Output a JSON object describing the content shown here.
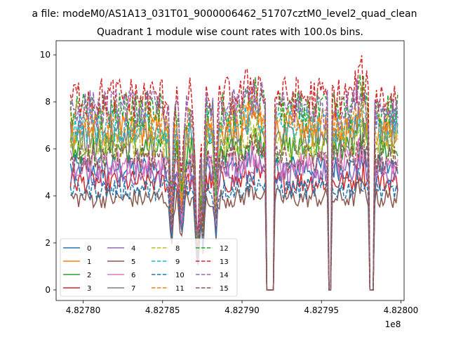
{
  "figure": {
    "suptitle": "a file: modeM0/AS1A13_031T01_9000006462_51707cztM0_level2_quad_clean",
    "title": "Quadrant 1 module wise count rates with 100.0s bins."
  },
  "chart_data": {
    "type": "line",
    "title": "Quadrant 1 module wise count rates with 100.0s bins.",
    "xlabel": "",
    "ylabel": "",
    "x_offset_label": "1e8",
    "xlim": [
      4.827783,
      4.828002
    ],
    "ylim": [
      -0.45,
      10.6
    ],
    "x_ticks": [
      4.8278,
      4.82785,
      4.8279,
      4.82795,
      4.828
    ],
    "x_tick_labels": [
      "4.82780",
      "4.82785",
      "4.82790",
      "4.82795",
      "4.82800"
    ],
    "y_ticks": [
      0,
      2,
      4,
      6,
      8,
      10
    ],
    "y_tick_labels": [
      "0",
      "2",
      "4",
      "6",
      "8",
      "10"
    ],
    "grid": false,
    "legend_location": "lower-left",
    "legend_columns": 4,
    "x_range": [
      4.827792,
      4.827998
    ],
    "gaps": [
      {
        "start": 4.8279155,
        "end": 4.8279205,
        "level": 0
      },
      {
        "start": 4.8279545,
        "end": 4.8279565,
        "level": 0
      },
      {
        "start": 4.8279795,
        "end": 4.8279835,
        "level": 0
      }
    ],
    "series": [
      {
        "name": "0",
        "color": "#1f77b4",
        "dash": "solid",
        "level": 5.2
      },
      {
        "name": "1",
        "color": "#ff7f0e",
        "dash": "solid",
        "level": 6.8
      },
      {
        "name": "2",
        "color": "#2ca02c",
        "dash": "solid",
        "level": 6.0
      },
      {
        "name": "3",
        "color": "#d62728",
        "dash": "solid",
        "level": 4.6
      },
      {
        "name": "4",
        "color": "#9467bd",
        "dash": "solid",
        "level": 5.0
      },
      {
        "name": "5",
        "color": "#8c564b",
        "dash": "solid",
        "level": 3.9
      },
      {
        "name": "6",
        "color": "#e377c2",
        "dash": "solid",
        "level": 5.4
      },
      {
        "name": "7",
        "color": "#7f7f7f",
        "dash": "solid",
        "level": 6.5
      },
      {
        "name": "8",
        "color": "#bcbd22",
        "dash": "dashed",
        "level": 6.3
      },
      {
        "name": "9",
        "color": "#17becf",
        "dash": "dashed",
        "level": 7.0
      },
      {
        "name": "10",
        "color": "#1f77b4",
        "dash": "dashed",
        "level": 4.3
      },
      {
        "name": "11",
        "color": "#ff7f0e",
        "dash": "dashed",
        "level": 7.2
      },
      {
        "name": "12",
        "color": "#2ca02c",
        "dash": "dashed",
        "level": 7.6
      },
      {
        "name": "13",
        "color": "#d62728",
        "dash": "dashed",
        "level": 8.2
      },
      {
        "name": "14",
        "color": "#9467bd",
        "dash": "dashed",
        "level": 7.7
      },
      {
        "name": "15",
        "color": "#8c564b",
        "dash": "dashed",
        "level": 5.6
      }
    ]
  }
}
